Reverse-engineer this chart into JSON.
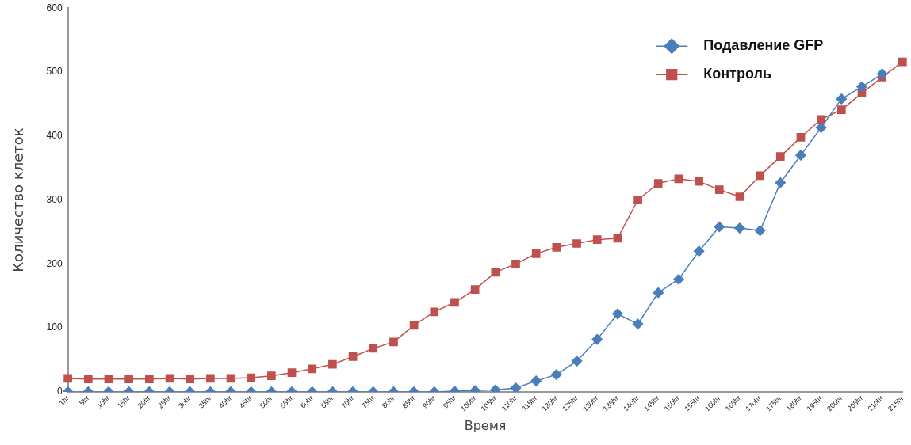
{
  "chart_data": {
    "type": "line",
    "xlabel": "Время",
    "ylabel": "Количество клеток",
    "categories": [
      "1hr",
      "5hr",
      "10hr",
      "15hr",
      "20hr",
      "25hr",
      "30hr",
      "35hr",
      "40hr",
      "45hr",
      "50hr",
      "55hr",
      "60hr",
      "65hr",
      "70hr",
      "75hr",
      "80hr",
      "85hr",
      "90hr",
      "95hr",
      "100hr",
      "105hr",
      "110hr",
      "115hr",
      "120hr",
      "125hr",
      "130hr",
      "135hr",
      "140hr",
      "145hr",
      "150hr",
      "155hr",
      "160hr",
      "165hr",
      "170hr",
      "175hr",
      "180hr",
      "195hr",
      "200hr",
      "205hr",
      "210hr",
      "215hr"
    ],
    "series": [
      {
        "name": "Подавление GFP",
        "color": "#4a7ebb",
        "marker": "diamond",
        "values": [
          0,
          0,
          0,
          0,
          0,
          0,
          0,
          0,
          0,
          0,
          0,
          0,
          0,
          0,
          0,
          0,
          0,
          0,
          0,
          1,
          2,
          3,
          6,
          17,
          27,
          48,
          82,
          122,
          106,
          155,
          176,
          220,
          258,
          256,
          252,
          327,
          370,
          413,
          458,
          477,
          497,
          null
        ]
      },
      {
        "name": "Контроль",
        "color": "#c0504d",
        "marker": "square",
        "values": [
          21,
          20,
          20,
          20,
          20,
          21,
          20,
          21,
          21,
          22,
          25,
          30,
          36,
          43,
          55,
          68,
          78,
          104,
          125,
          140,
          160,
          187,
          200,
          216,
          226,
          232,
          238,
          240,
          300,
          326,
          333,
          329,
          316,
          305,
          338,
          368,
          398,
          426,
          441,
          467,
          492,
          516
        ]
      }
    ],
    "ylim": [
      0,
      600
    ],
    "yticks": [
      0,
      100,
      200,
      300,
      400,
      500,
      600
    ],
    "grid": false,
    "legend": "top right"
  }
}
